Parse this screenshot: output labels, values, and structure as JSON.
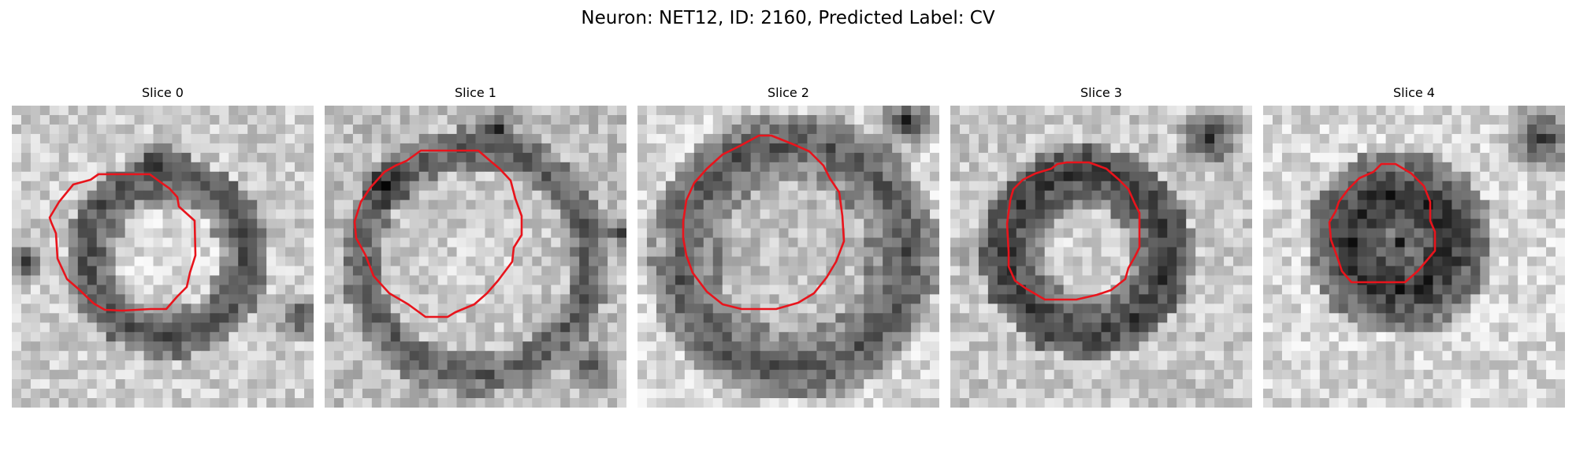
{
  "figure": {
    "title": "Neuron: NET12, ID: 2160, Predicted Label: CV",
    "contour_color": "#e8141c",
    "panels": [
      {
        "title": "Slice 0",
        "description": "grayscale cross-section with ring-shaped dark membrane and bright center; red contour traced around center"
      },
      {
        "title": "Slice 1",
        "description": "grayscale cross-section, broad bright interior with darker speckled boundary; red contour around cell"
      },
      {
        "title": "Slice 2",
        "description": "grayscale cross-section, large medium-gray cell with darker rim; red contour around cell"
      },
      {
        "title": "Slice 3",
        "description": "grayscale cross-section, dark ring with bright center; red contour around cell"
      },
      {
        "title": "Slice 4",
        "description": "grayscale cross-section, compact dark blob on light background; small red contour around blob"
      }
    ]
  }
}
